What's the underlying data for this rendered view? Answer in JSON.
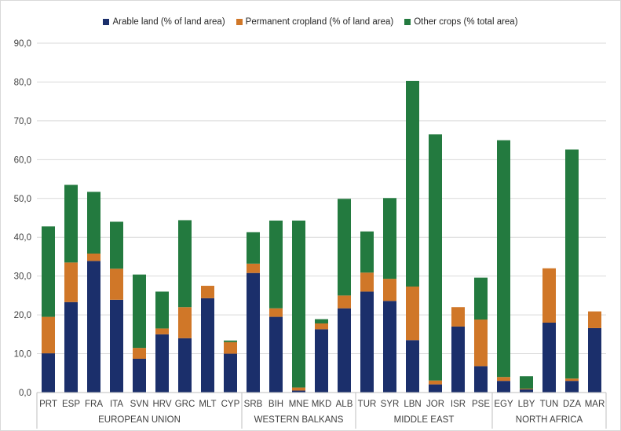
{
  "chart_data": {
    "type": "bar",
    "stacked": true,
    "ylim": [
      0,
      90
    ],
    "yticks": [
      "0,0",
      "10,0",
      "20,0",
      "30,0",
      "40,0",
      "50,0",
      "60,0",
      "70,0",
      "80,0",
      "90,0"
    ],
    "grid": "horizontal",
    "legend_position": "top",
    "categories": [
      "PRT",
      "ESP",
      "FRA",
      "ITA",
      "SVN",
      "HRV",
      "GRC",
      "MLT",
      "CYP",
      "SRB",
      "BIH",
      "MNE",
      "MKD",
      "ALB",
      "TUR",
      "SYR",
      "LBN",
      "JOR",
      "ISR",
      "PSE",
      "EGY",
      "LBY",
      "TUN",
      "DZA",
      "MAR"
    ],
    "groups": [
      {
        "name": "EUROPEAN UNION",
        "count": 9
      },
      {
        "name": "WESTERN BALKANS",
        "count": 5
      },
      {
        "name": "MIDDLE EAST",
        "count": 6
      },
      {
        "name": "NORTH AFRICA",
        "count": 5
      }
    ],
    "series": [
      {
        "name": "Arable land (% of land area)",
        "color": "#1b2f6b",
        "values": [
          10.1,
          23.3,
          33.9,
          23.9,
          8.7,
          15.0,
          14.0,
          24.3,
          10.0,
          30.8,
          19.5,
          0.5,
          16.3,
          21.7,
          26.0,
          23.6,
          13.5,
          2.1,
          17.0,
          6.8,
          3.0,
          0.8,
          18.0,
          3.0,
          16.6
        ]
      },
      {
        "name": "Permanent cropland (% of land area)",
        "color": "#d07728",
        "values": [
          9.4,
          10.2,
          1.9,
          8.0,
          2.8,
          1.5,
          8.0,
          3.2,
          3.0,
          2.4,
          2.2,
          0.8,
          1.5,
          3.3,
          4.9,
          5.7,
          13.8,
          1.0,
          5.0,
          12.0,
          1.0,
          0.2,
          14.0,
          0.6,
          4.3
        ]
      },
      {
        "name": "Other crops (% total area)",
        "color": "#237a3f",
        "values": [
          23.3,
          20.0,
          15.9,
          12.1,
          18.9,
          9.5,
          22.4,
          0.0,
          0.4,
          8.1,
          22.6,
          43.0,
          1.1,
          24.9,
          10.6,
          20.8,
          53.0,
          63.4,
          0.0,
          10.8,
          61.0,
          3.2,
          0.0,
          59.0,
          0.0
        ]
      }
    ]
  }
}
